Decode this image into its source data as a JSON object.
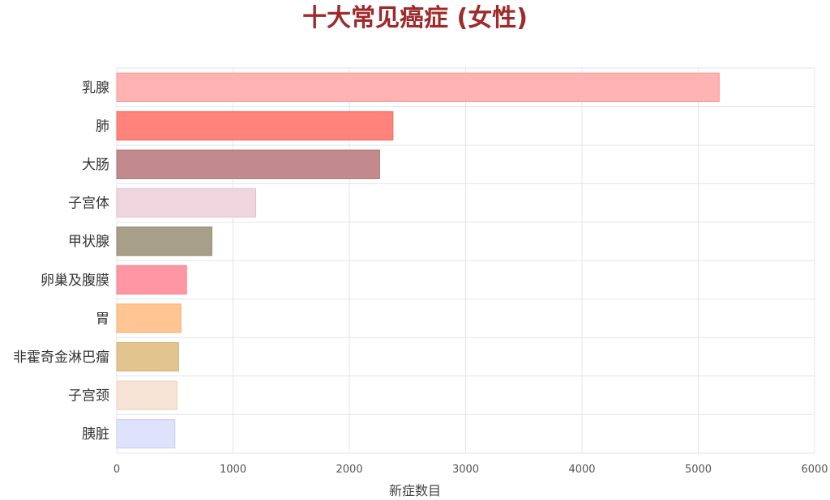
{
  "chart_data": {
    "type": "bar",
    "orientation": "horizontal",
    "title": "十大常见癌症 (女性)",
    "xlabel": "新症数目",
    "ylabel": "",
    "xlim": [
      0,
      6000
    ],
    "xticks": [
      "0",
      "1000",
      "2000",
      "3000",
      "4000",
      "5000",
      "6000"
    ],
    "grid": true,
    "categories": [
      "乳腺",
      "肺",
      "大肠",
      "子宫体",
      "甲状腺",
      "卵巢及腹膜",
      "胃",
      "非霍奇金淋巴瘤",
      "子宫颈",
      "胰脏"
    ],
    "values": [
      5180,
      2375,
      2260,
      1195,
      818,
      600,
      552,
      532,
      518,
      500
    ],
    "colors": [
      "#ffb3b3",
      "#ff837a",
      "#c28a8c",
      "#efd6de",
      "#a89f88",
      "#ff96a3",
      "#ffc592",
      "#e2c48f",
      "#f6e3d5",
      "#dfe2fb"
    ],
    "edge_colors": [
      "#f59a9a",
      "#f06a62",
      "#a87073",
      "#e2bfca",
      "#8d8570",
      "#f07e8c",
      "#f4ae72",
      "#d1ae74",
      "#ecd1bd",
      "#c9cdf1"
    ]
  }
}
